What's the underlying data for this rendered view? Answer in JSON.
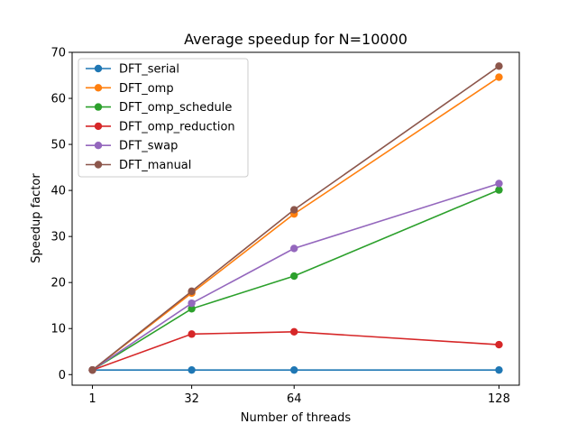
{
  "chart_data": {
    "type": "line",
    "title": "Average speedup for N=10000",
    "xlabel": "Number of threads",
    "ylabel": "Speedup factor",
    "x": [
      1,
      32,
      64,
      128
    ],
    "xticks": [
      "1",
      "32",
      "64",
      "128"
    ],
    "xlim": [
      -5.35,
      134.35
    ],
    "ylim": [
      -2.3,
      70
    ],
    "yticks": [
      "0",
      "10",
      "20",
      "30",
      "40",
      "50",
      "60",
      "70"
    ],
    "grid": false,
    "legend_position": "top-left",
    "series": [
      {
        "name": "DFT_serial",
        "color": "#1f77b4",
        "values": [
          1.0,
          1.0,
          1.0,
          1.0
        ]
      },
      {
        "name": "DFT_omp",
        "color": "#ff7f0e",
        "values": [
          1.0,
          17.7,
          34.9,
          64.6
        ]
      },
      {
        "name": "DFT_omp_schedule",
        "color": "#2ca02c",
        "values": [
          1.0,
          14.3,
          21.4,
          40.1
        ]
      },
      {
        "name": "DFT_omp_reduction",
        "color": "#d62728",
        "values": [
          1.0,
          8.8,
          9.3,
          6.5
        ]
      },
      {
        "name": "DFT_swap",
        "color": "#9467bd",
        "values": [
          1.0,
          15.5,
          27.4,
          41.5
        ]
      },
      {
        "name": "DFT_manual",
        "color": "#8c564b",
        "values": [
          1.0,
          18.1,
          35.8,
          67.0
        ]
      }
    ]
  }
}
